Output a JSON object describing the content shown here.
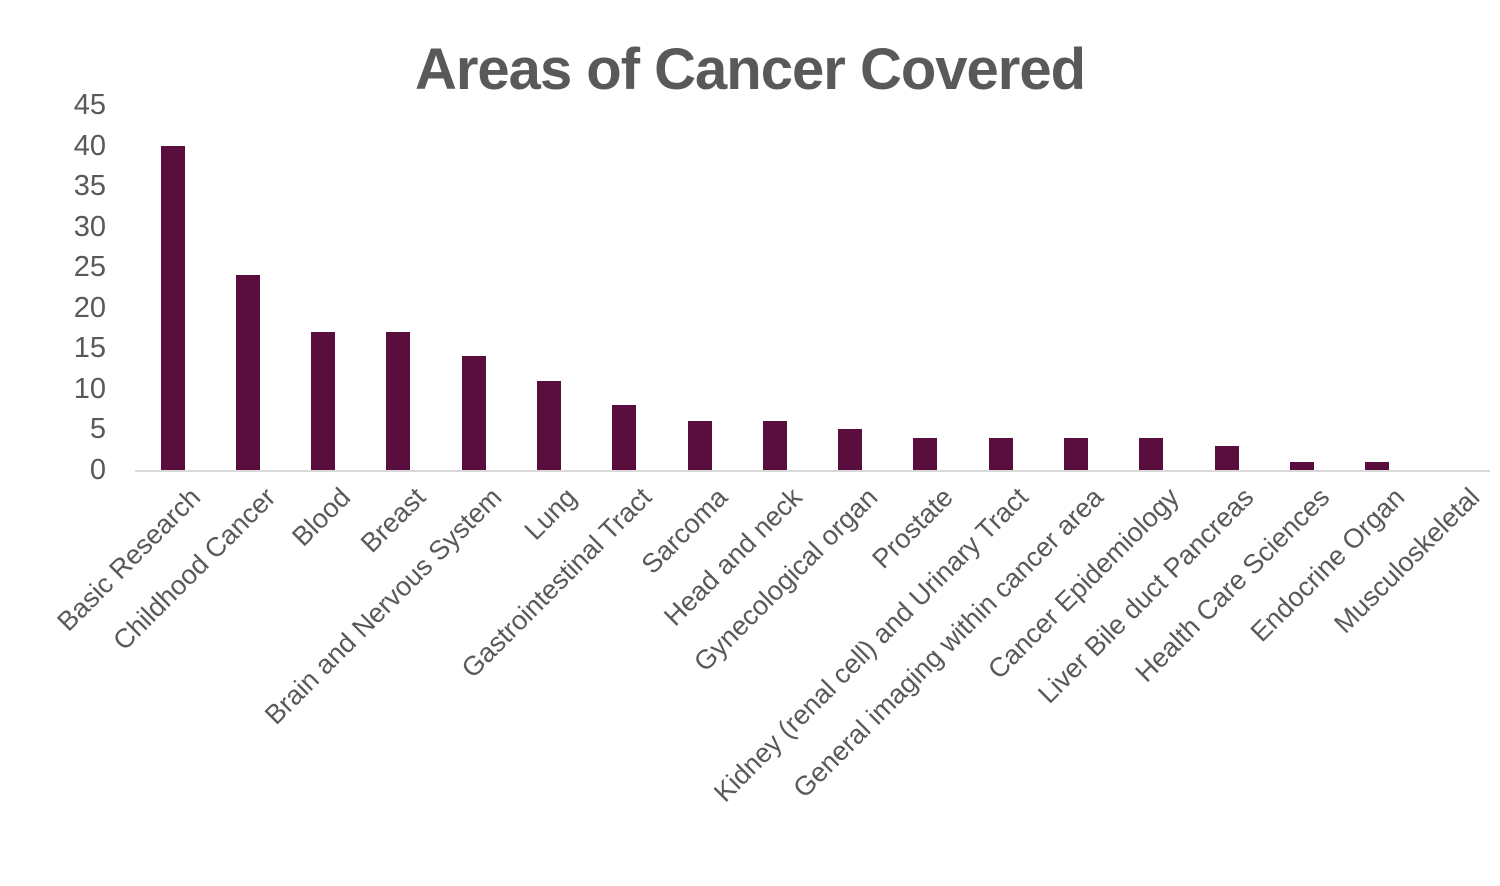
{
  "chart_data": {
    "type": "bar",
    "title": "Areas of Cancer Covered",
    "categories": [
      "Basic Research",
      "Childhood Cancer",
      "Blood",
      "Breast",
      "Brain and Nervous System",
      "Lung",
      "Gastrointestinal Tract",
      "Sarcoma",
      "Head and neck",
      "Gynecological organ",
      "Prostate",
      "Kidney (renal cell) and Urinary Tract",
      "General imaging within cancer area",
      "Cancer Epidemiology",
      "Liver Bile duct Pancreas",
      "Health Care Sciences",
      "Endocrine Organ",
      "Musculoskeletal"
    ],
    "values": [
      40,
      24,
      17,
      17,
      14,
      11,
      8,
      6,
      6,
      5,
      4,
      4,
      4,
      4,
      3,
      1,
      1,
      0
    ],
    "xlabel": "",
    "ylabel": "",
    "ylim": [
      0,
      45
    ],
    "ytick_interval": 5,
    "yticks": [
      0,
      5,
      10,
      15,
      20,
      25,
      30,
      35,
      40,
      45
    ],
    "grid": false,
    "legend": false,
    "bar_color": "#5a0e3e",
    "text_color": "#595959",
    "axis_line_color": "#d9d9d9"
  }
}
